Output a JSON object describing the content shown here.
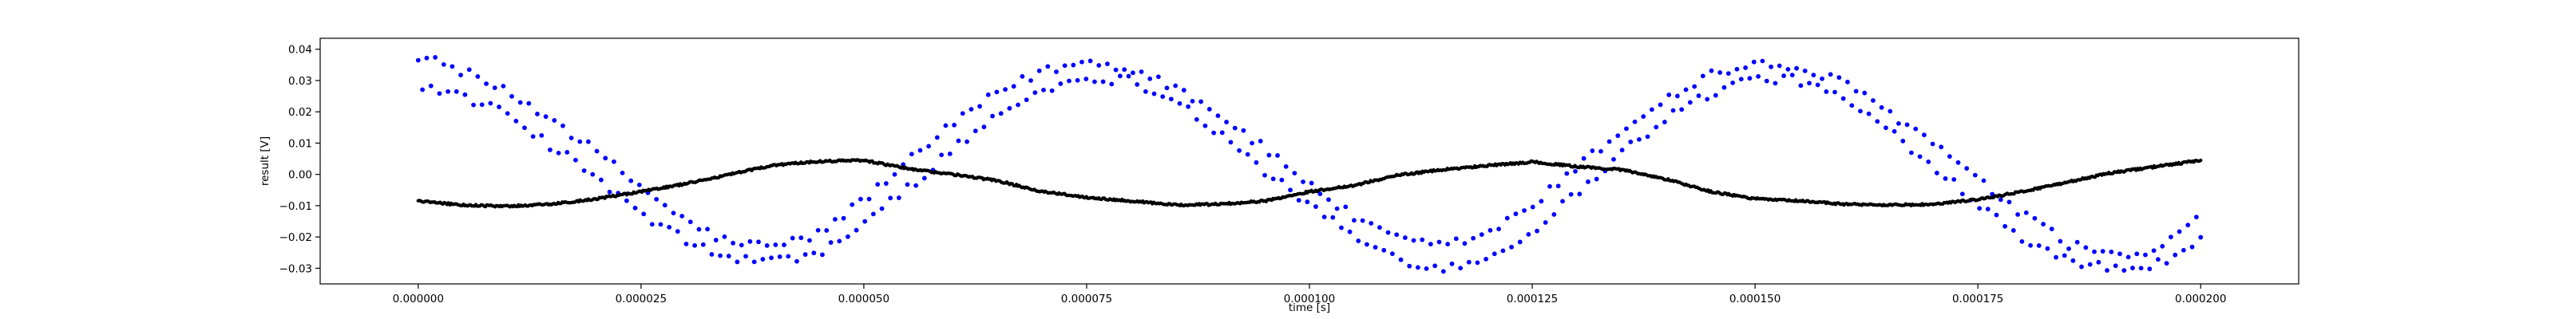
{
  "chart_data": {
    "type": "scatter",
    "title": "",
    "xlabel": "time [s]",
    "ylabel": "result [V]",
    "xlim": [
      -1.1e-05,
      0.000211
    ],
    "ylim": [
      -0.035,
      0.0435
    ],
    "grid": false,
    "legend": "none",
    "x_ticks": [
      0,
      2.5e-05,
      5e-05,
      7.5e-05,
      0.0001,
      0.000125,
      0.00015,
      0.000175,
      0.0002
    ],
    "x_tick_labels": [
      "0.000000",
      "0.000025",
      "0.000050",
      "0.000075",
      "0.000100",
      "0.000125",
      "0.000150",
      "0.000175",
      "0.000200"
    ],
    "y_ticks": [
      -0.03,
      -0.02,
      -0.01,
      0.0,
      0.01,
      0.02,
      0.03,
      0.04
    ],
    "y_tick_labels": [
      "−0.03",
      "−0.02",
      "−0.01",
      "0.00",
      "0.01",
      "0.02",
      "0.03",
      "0.04"
    ],
    "series": [
      {
        "color": "#0000ff",
        "x": [
          0,
          5e-06,
          1e-05,
          1.5e-05,
          2e-05,
          2.5e-05,
          3e-05,
          3.5e-05,
          4e-05,
          4.5e-05,
          5e-05,
          5.5e-05,
          6e-05,
          6.5e-05,
          7e-05,
          7.5e-05,
          8e-05,
          8.5e-05,
          9e-05,
          9.5e-05,
          0.0001,
          0.000105,
          0.00011,
          0.000115,
          0.00012,
          0.000125,
          0.00013,
          0.000135,
          0.00014,
          0.000145,
          0.00015,
          0.000155,
          0.00016,
          0.000165,
          0.00017,
          0.000175,
          0.00018,
          0.000185,
          0.00019,
          0.000195,
          0.0002
        ],
        "y_upper": [
          0.038,
          0.033,
          0.026,
          0.018,
          0.007,
          -0.004,
          -0.015,
          -0.022,
          -0.023,
          -0.019,
          -0.008,
          0.004,
          0.016,
          0.026,
          0.033,
          0.036,
          0.034,
          0.028,
          0.019,
          0.008,
          -0.003,
          -0.014,
          -0.021,
          -0.023,
          -0.019,
          -0.01,
          0.002,
          0.014,
          0.024,
          0.032,
          0.035,
          0.034,
          0.029,
          0.02,
          0.01,
          -0.002,
          -0.013,
          -0.022,
          -0.026,
          -0.025,
          -0.014
        ],
        "y_lower": [
          0.029,
          0.025,
          0.019,
          0.009,
          -0.001,
          -0.013,
          -0.021,
          -0.027,
          -0.028,
          -0.025,
          -0.016,
          -0.004,
          0.008,
          0.019,
          0.027,
          0.031,
          0.03,
          0.024,
          0.013,
          0.001,
          -0.01,
          -0.02,
          -0.027,
          -0.03,
          -0.027,
          -0.018,
          -0.006,
          0.007,
          0.018,
          0.026,
          0.031,
          0.03,
          0.024,
          0.014,
          0.003,
          -0.009,
          -0.02,
          -0.027,
          -0.03,
          -0.029,
          -0.02
        ]
      },
      {
        "color": "#000000",
        "x": [
          0,
          5e-06,
          1e-05,
          1.5e-05,
          2e-05,
          2.5e-05,
          3e-05,
          3.5e-05,
          4e-05,
          4.5e-05,
          5e-05,
          5.5e-05,
          6e-05,
          6.5e-05,
          7e-05,
          7.5e-05,
          8e-05,
          8.5e-05,
          9e-05,
          9.5e-05,
          0.0001,
          0.000105,
          0.00011,
          0.000115,
          0.00012,
          0.000125,
          0.00013,
          0.000135,
          0.00014,
          0.000145,
          0.00015,
          0.000155,
          0.00016,
          0.000165,
          0.00017,
          0.000175,
          0.00018,
          0.000185,
          0.00019,
          0.000195,
          0.0002
        ],
        "y": [
          -0.0085,
          -0.0098,
          -0.0102,
          -0.0095,
          -0.0078,
          -0.0055,
          -0.003,
          0.0,
          0.003,
          0.0042,
          0.0045,
          0.0018,
          0.0,
          -0.002,
          -0.0055,
          -0.0073,
          -0.0085,
          -0.0098,
          -0.0095,
          -0.0085,
          -0.0055,
          -0.0035,
          -0.0002,
          0.0015,
          0.0028,
          0.004,
          0.0025,
          0.0015,
          -0.0015,
          -0.0055,
          -0.0078,
          -0.0085,
          -0.0095,
          -0.0098,
          -0.0096,
          -0.008,
          -0.0055,
          -0.0025,
          0.0005,
          0.0025,
          0.0045
        ]
      }
    ]
  }
}
